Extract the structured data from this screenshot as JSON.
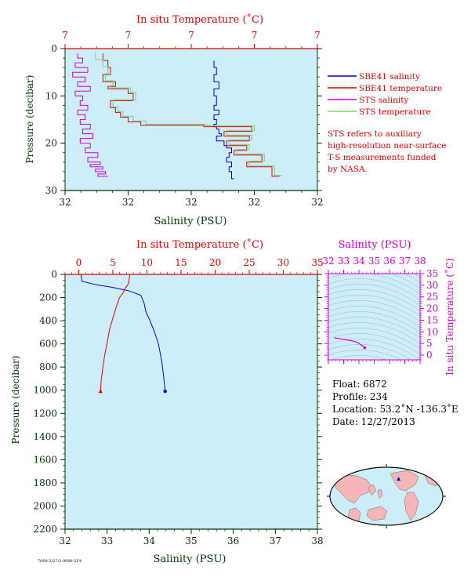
{
  "colors": {
    "plot_bg": "#cdeef8",
    "red": "#dd0000",
    "blue": "#0000cc",
    "magenta": "#cc00cc",
    "green": "#7fcf7f",
    "axis_green": "#003300",
    "land": "#f4b6b6",
    "ocean": "#cdeef8"
  },
  "chart_data": [
    {
      "type": "line",
      "x_top_label": "In situ Temperature (˚C)",
      "x_top_ticks": [
        "7",
        "7",
        "7",
        "7",
        "7"
      ],
      "x_bottom_label": "Salinity (PSU)",
      "x_bottom_ticks": [
        "32",
        "32",
        "32",
        "32",
        "32"
      ],
      "y_label": "Pressure (decibar)",
      "y_ticks": [
        0,
        10,
        20,
        30
      ],
      "ylim": [
        0,
        30
      ],
      "y_inverted": true,
      "legend_position": "right",
      "legend": [
        "SBE41 salinity",
        "SBE41 temperature",
        "STS salinity",
        "STS temperature"
      ],
      "note": [
        "STS refers to auxiliary",
        "high-resolution near-surface",
        "T-S measurements funded",
        "by NASA."
      ],
      "series": [
        {
          "name": "SBE41 salinity",
          "color": "blue",
          "x_frac": [
            0.59,
            0.6,
            0.59,
            0.61,
            0.59,
            0.6,
            0.6,
            0.59,
            0.61,
            0.59,
            0.6,
            0.59,
            0.6,
            0.61,
            0.62,
            0.6,
            0.63,
            0.64,
            0.66,
            0.65,
            0.64,
            0.66,
            0.65,
            0.66,
            0.67
          ],
          "pressure": [
            2.5,
            4.0,
            5.5,
            7.0,
            8.5,
            10.0,
            11.0,
            12.0,
            13.0,
            14.0,
            15.0,
            16.0,
            16.5,
            17.0,
            18.0,
            18.5,
            19.5,
            20.5,
            21.0,
            22.0,
            23.0,
            24.0,
            25.0,
            26.0,
            27.5
          ]
        },
        {
          "name": "SBE41 temperature",
          "color": "red",
          "x_frac": [
            0.15,
            0.17,
            0.18,
            0.15,
            0.2,
            0.17,
            0.25,
            0.27,
            0.18,
            0.2,
            0.22,
            0.25,
            0.3,
            0.55,
            0.74,
            0.63,
            0.73,
            0.64,
            0.72,
            0.67,
            0.78,
            0.72,
            0.82,
            0.85
          ],
          "pressure": [
            1.0,
            2.5,
            4.0,
            5.5,
            7.0,
            8.0,
            8.5,
            9.5,
            11.0,
            12.5,
            13.5,
            14.5,
            15.5,
            16.2,
            16.5,
            17.5,
            18.5,
            19.5,
            20.5,
            21.5,
            22.5,
            24.0,
            25.0,
            27.0
          ]
        },
        {
          "name": "STS salinity",
          "color": "magenta",
          "x_frac": [
            0.05,
            0.07,
            0.04,
            0.09,
            0.03,
            0.08,
            0.05,
            0.1,
            0.04,
            0.07,
            0.06,
            0.09,
            0.05,
            0.08,
            0.06,
            0.1,
            0.07,
            0.11,
            0.06,
            0.1,
            0.08,
            0.13,
            0.09,
            0.14,
            0.1,
            0.15,
            0.12,
            0.16,
            0.13,
            0.17
          ],
          "pressure": [
            1.0,
            2.0,
            3.0,
            4.0,
            5.0,
            6.0,
            7.0,
            8.0,
            9.0,
            10.0,
            11.0,
            12.0,
            13.0,
            14.0,
            15.0,
            16.0,
            17.0,
            18.0,
            19.0,
            20.0,
            21.0,
            22.0,
            23.0,
            24.0,
            24.5,
            25.0,
            25.5,
            26.0,
            26.5,
            27.0
          ]
        },
        {
          "name": "STS temperature",
          "color": "green",
          "x_frac": [
            0.12,
            0.15,
            0.17,
            0.16,
            0.19,
            0.18,
            0.26,
            0.28,
            0.19,
            0.21,
            0.23,
            0.27,
            0.32,
            0.56,
            0.75,
            0.64,
            0.74,
            0.65,
            0.73,
            0.68,
            0.79,
            0.73,
            0.83,
            0.86
          ],
          "pressure": [
            0.8,
            2.3,
            3.8,
            5.3,
            6.8,
            7.8,
            8.3,
            9.3,
            10.8,
            12.3,
            13.3,
            14.3,
            15.3,
            16.0,
            16.3,
            17.3,
            18.3,
            19.3,
            20.3,
            21.3,
            22.3,
            23.8,
            24.8,
            26.8
          ]
        }
      ]
    },
    {
      "type": "line",
      "x_top_label": "In situ Temperature (˚C)",
      "x_top_ticks": [
        0,
        5,
        10,
        15,
        20,
        25,
        30,
        35
      ],
      "xlim_top": [
        -2,
        35
      ],
      "x_bottom_label": "Salinity (PSU)",
      "x_bottom_ticks": [
        32,
        33,
        34,
        35,
        36,
        37,
        38
      ],
      "xlim_bottom": [
        32,
        38
      ],
      "y_label": "Pressure (decibar)",
      "y_ticks": [
        0,
        200,
        400,
        600,
        800,
        1000,
        1200,
        1400,
        1600,
        1800,
        2000,
        2200
      ],
      "ylim": [
        0,
        2200
      ],
      "y_inverted": true,
      "series": [
        {
          "name": "Salinity",
          "color": "blue",
          "x": [
            32.38,
            32.4,
            32.75,
            33.1,
            33.5,
            33.8,
            33.88,
            33.92,
            34.02,
            34.13,
            34.22,
            34.3,
            34.35,
            34.38
          ],
          "pressure": [
            0,
            60,
            90,
            110,
            140,
            180,
            250,
            320,
            400,
            500,
            600,
            750,
            900,
            1010
          ]
        },
        {
          "name": "Temperature",
          "color": "red",
          "x": [
            7.5,
            7.3,
            6.8,
            6.5,
            6.0,
            5.5,
            5.0,
            4.5,
            4.2,
            3.8,
            3.5,
            3.3,
            3.2
          ],
          "pressure": [
            0,
            80,
            120,
            160,
            200,
            280,
            380,
            480,
            580,
            700,
            820,
            920,
            1010
          ]
        }
      ]
    },
    {
      "type": "line",
      "x_label": "Salinity (PSU)",
      "x_ticks": [
        32,
        33,
        34,
        35,
        36,
        37,
        38
      ],
      "xlim": [
        32,
        38
      ],
      "y_label": "In situ Temperature (˚C)",
      "y_ticks": [
        0,
        5,
        10,
        15,
        20,
        25,
        30,
        35
      ],
      "ylim": [
        -2,
        35
      ],
      "series": [
        {
          "name": "T-S",
          "color": "magenta",
          "x": [
            32.38,
            33.0,
            33.5,
            33.9,
            34.1,
            34.38
          ],
          "y": [
            7.5,
            6.8,
            6.2,
            5.5,
            4.6,
            3.2
          ]
        }
      ]
    }
  ],
  "float_info": {
    "float": "Float:  6872",
    "profile": "Profile:  234",
    "location": "Location:  53.2˚N  -136.3˚E",
    "date": "Date:  12/27/2013"
  },
  "footer_text": "7069.3/27/2.0088-2F4",
  "map": {
    "float_lat": 53.2,
    "float_lon": -136.3
  }
}
